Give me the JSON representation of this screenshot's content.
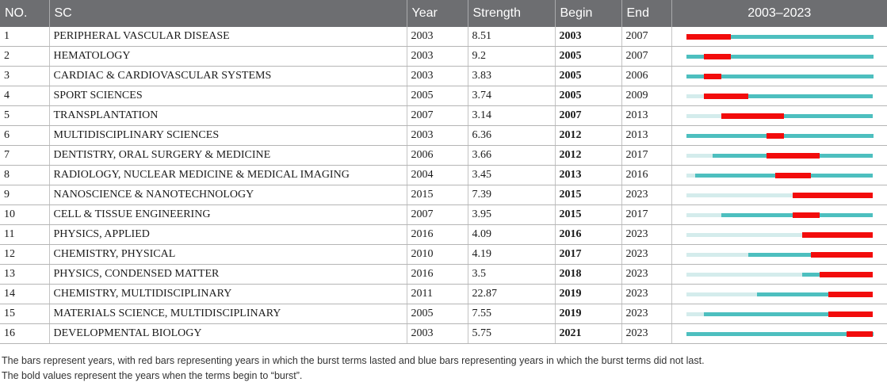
{
  "columns": {
    "no": "NO.",
    "sc": "SC",
    "year": "Year",
    "strength": "Strength",
    "begin": "Begin",
    "end": "End",
    "range": "2003–2023"
  },
  "timeline": {
    "first_year": 2003,
    "last_year": 2023
  },
  "colors": {
    "burst": "#f20c0c",
    "active": "#4dbfbf",
    "inactive": "#d4ecec",
    "header_bg": "#6d6e71"
  },
  "rows": [
    {
      "no": "1",
      "sc": "PERIPHERAL VASCULAR DISEASE",
      "year": "2003",
      "strength": "8.51",
      "begin": "2003",
      "end": "2007"
    },
    {
      "no": "2",
      "sc": "HEMATOLOGY",
      "year": "2003",
      "strength": "9.2",
      "begin": "2005",
      "end": "2007"
    },
    {
      "no": "3",
      "sc": "CARDIAC & CARDIOVASCULAR SYSTEMS",
      "year": "2003",
      "strength": "3.83",
      "begin": "2005",
      "end": "2006"
    },
    {
      "no": "4",
      "sc": "SPORT SCIENCES",
      "year": "2005",
      "strength": "3.74",
      "begin": "2005",
      "end": "2009"
    },
    {
      "no": "5",
      "sc": "TRANSPLANTATION",
      "year": "2007",
      "strength": "3.14",
      "begin": "2007",
      "end": "2013"
    },
    {
      "no": "6",
      "sc": "MULTIDISCIPLINARY SCIENCES",
      "year": "2003",
      "strength": "6.36",
      "begin": "2012",
      "end": "2013"
    },
    {
      "no": "7",
      "sc": "DENTISTRY, ORAL SURGERY & MEDICINE",
      "year": "2006",
      "strength": "3.66",
      "begin": "2012",
      "end": "2017"
    },
    {
      "no": "8",
      "sc": "RADIOLOGY, NUCLEAR MEDICINE & MEDICAL IMAGING",
      "year": "2004",
      "strength": "3.45",
      "begin": "2013",
      "end": "2016"
    },
    {
      "no": "9",
      "sc": "NANOSCIENCE & NANOTECHNOLOGY",
      "year": "2015",
      "strength": "7.39",
      "begin": "2015",
      "end": "2023"
    },
    {
      "no": "10",
      "sc": "CELL & TISSUE ENGINEERING",
      "year": "2007",
      "strength": "3.95",
      "begin": "2015",
      "end": "2017"
    },
    {
      "no": "11",
      "sc": "PHYSICS, APPLIED",
      "year": "2016",
      "strength": "4.09",
      "begin": "2016",
      "end": "2023"
    },
    {
      "no": "12",
      "sc": "CHEMISTRY, PHYSICAL",
      "year": "2010",
      "strength": "4.19",
      "begin": "2017",
      "end": "2023"
    },
    {
      "no": "13",
      "sc": "PHYSICS, CONDENSED MATTER",
      "year": "2016",
      "strength": "3.5",
      "begin": "2018",
      "end": "2023"
    },
    {
      "no": "14",
      "sc": "CHEMISTRY, MULTIDISCIPLINARY",
      "year": "2011",
      "strength": "22.87",
      "begin": "2019",
      "end": "2023"
    },
    {
      "no": "15",
      "sc": "MATERIALS SCIENCE, MULTIDISCIPLINARY",
      "year": "2005",
      "strength": "7.55",
      "begin": "2019",
      "end": "2023"
    },
    {
      "no": "16",
      "sc": "DEVELOPMENTAL BIOLOGY",
      "year": "2003",
      "strength": "5.75",
      "begin": "2021",
      "end": "2023"
    }
  ],
  "notes": {
    "line1": "The bars represent years, with red bars representing years in which the burst terms lasted and blue bars representing years in which the burst terms did not last.",
    "line2": "The bold values represent the years when the terms begin to “burst”."
  }
}
